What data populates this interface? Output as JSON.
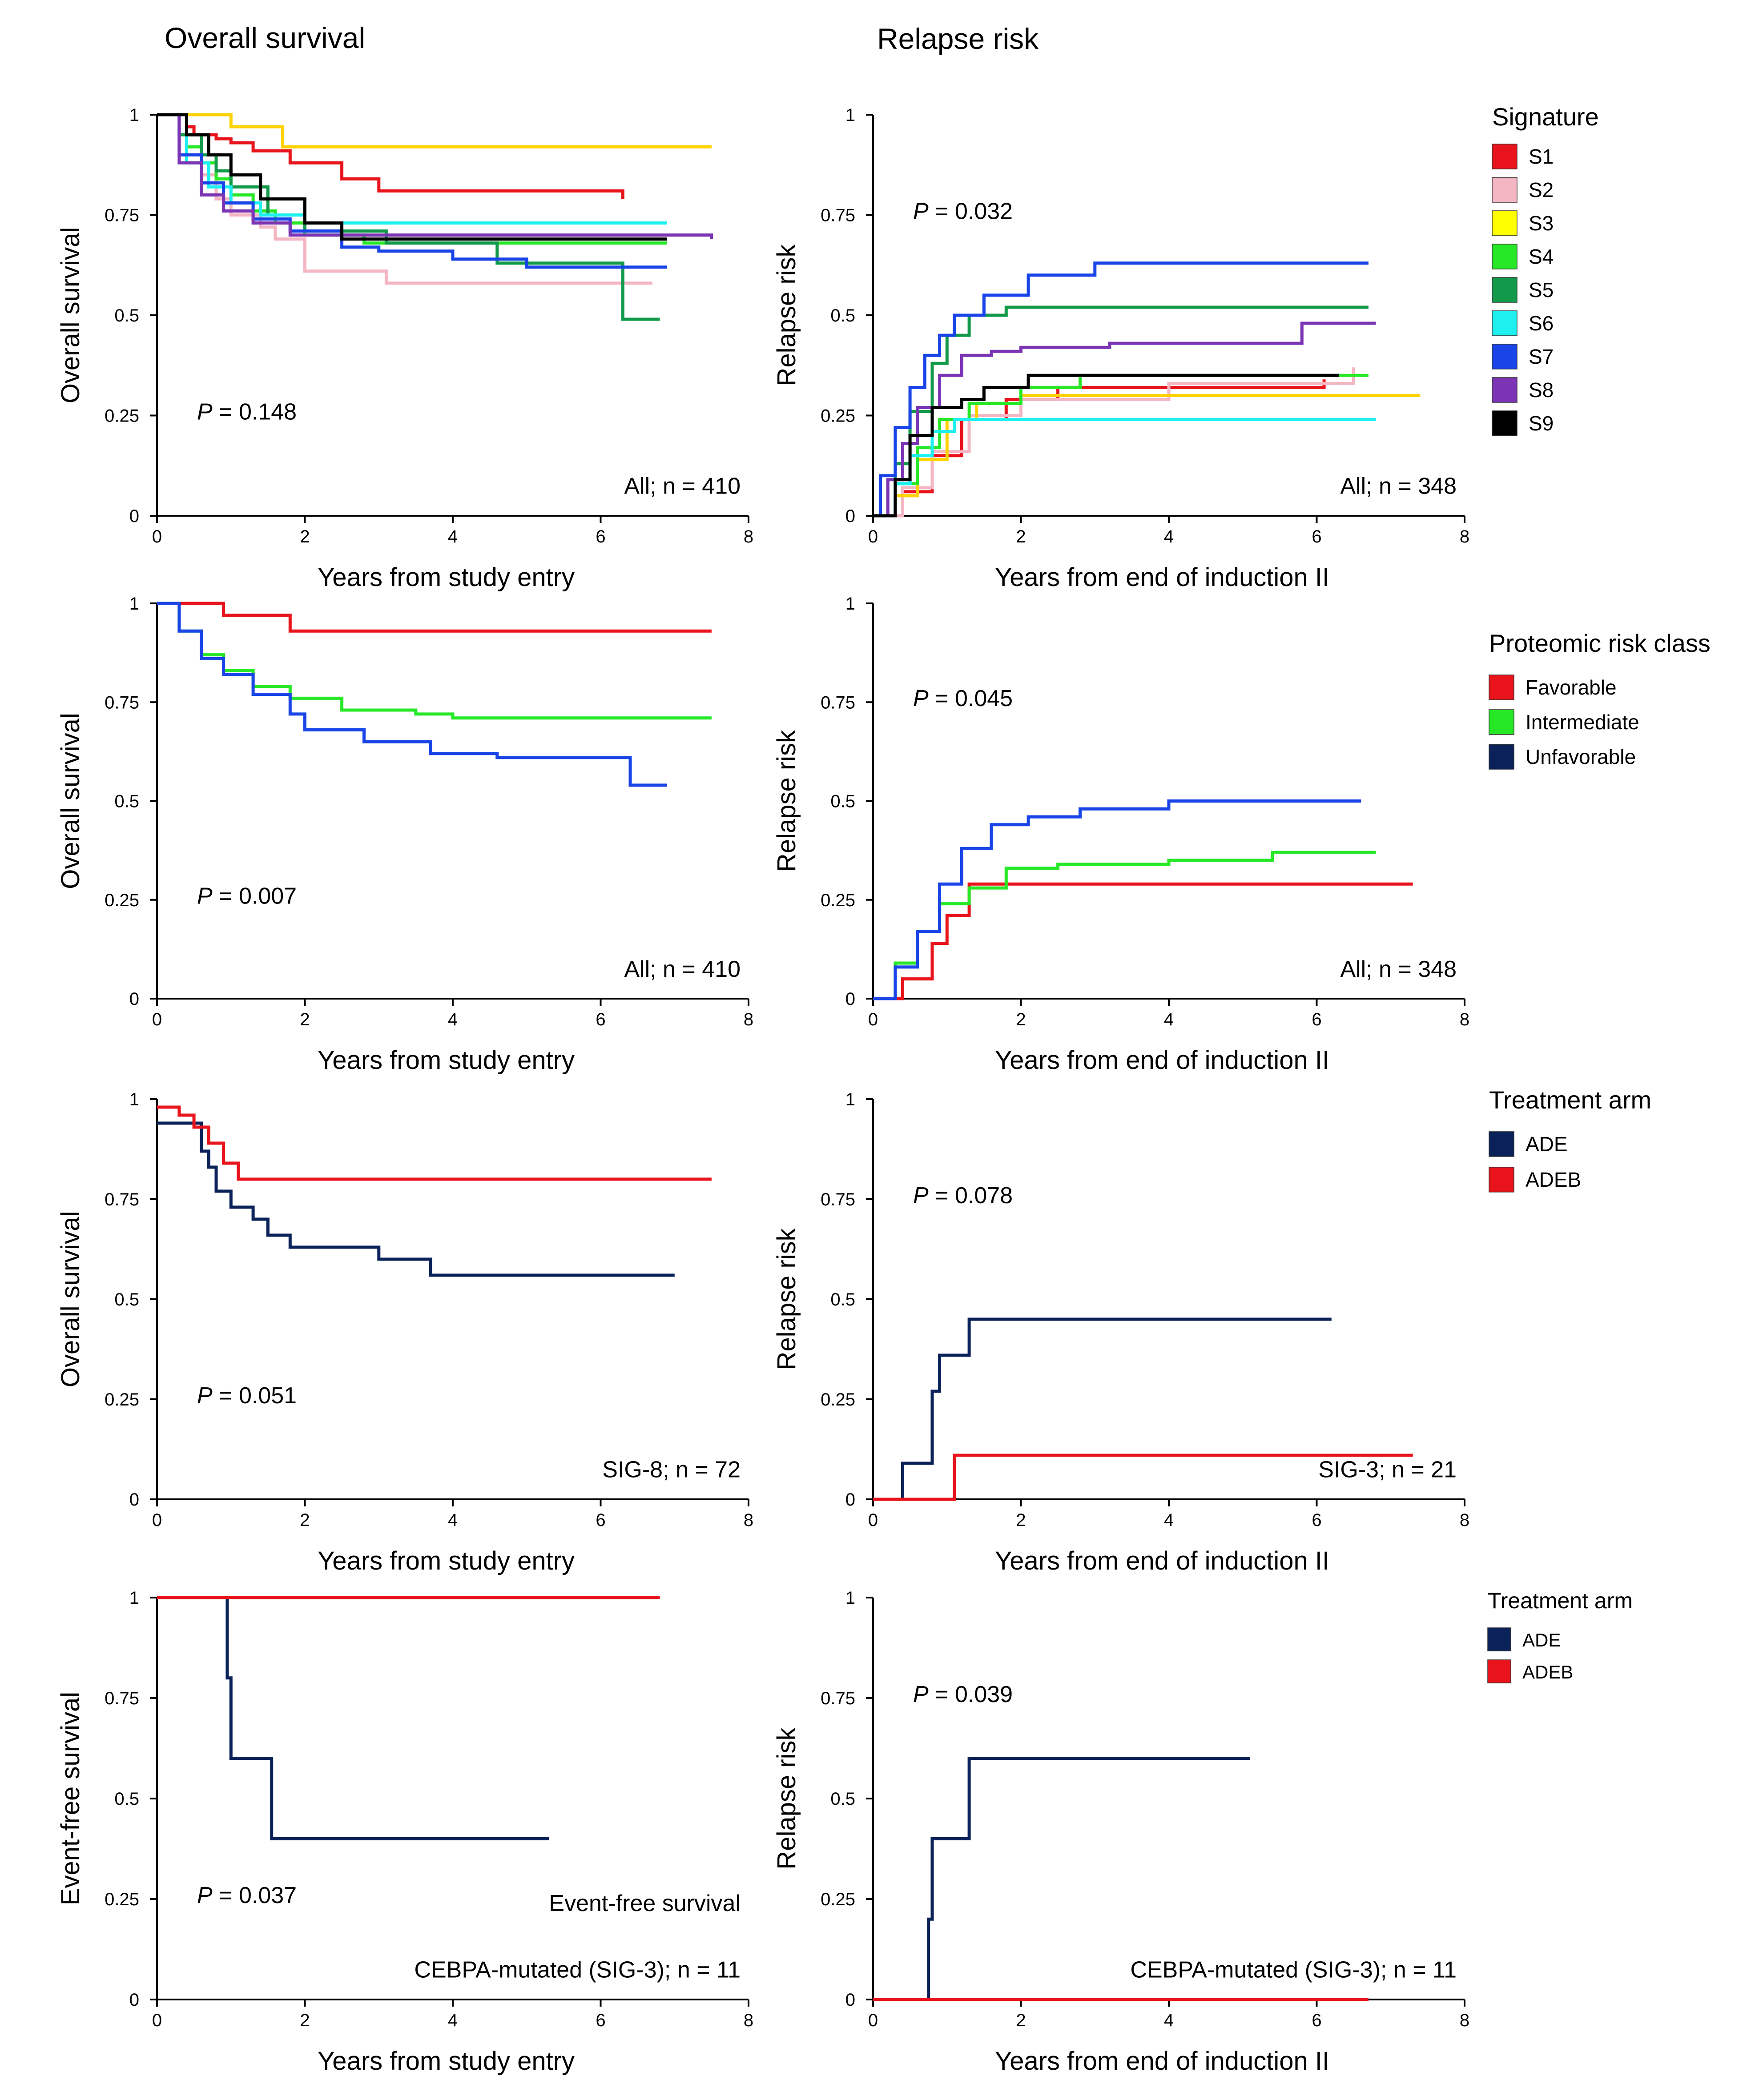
{
  "columns": {
    "left_title": "Overall survival",
    "right_title": "Relapse risk"
  },
  "legends": [
    {
      "title": "Signature",
      "entries": [
        {
          "label": "S1",
          "color": "#e8131b"
        },
        {
          "label": "S2",
          "color": "#f4b6c2"
        },
        {
          "label": "S3",
          "color": "#ffff00"
        },
        {
          "label": "S4",
          "color": "#27e827"
        },
        {
          "label": "S5",
          "color": "#129a4a"
        },
        {
          "label": "S6",
          "color": "#1ef0f0"
        },
        {
          "label": "S7",
          "color": "#1844e8"
        },
        {
          "label": "S8",
          "color": "#7b35b4"
        },
        {
          "label": "S9",
          "color": "#000000"
        }
      ]
    },
    {
      "title": "Proteomic risk class",
      "entries": [
        {
          "label": "Favorable",
          "color": "#e8131b"
        },
        {
          "label": "Intermediate",
          "color": "#27e827"
        },
        {
          "label": "Unfavorable",
          "color": "#0a2259"
        }
      ]
    },
    {
      "title": "Treatment arm",
      "entries": [
        {
          "label": "ADE",
          "color": "#0a2259"
        },
        {
          "label": "ADEB",
          "color": "#e8131b"
        }
      ]
    },
    {
      "title": "Treatment arm",
      "entries": [
        {
          "label": "ADE",
          "color": "#0a2259"
        },
        {
          "label": "ADEB",
          "color": "#e8131b"
        }
      ]
    }
  ],
  "chart_data": [
    {
      "id": "os_signature",
      "type": "line",
      "ylabel": "Overall survival",
      "xlabel": "Years from study entry",
      "xlim": [
        0,
        8
      ],
      "ylim": [
        0,
        1
      ],
      "xticks": [
        "0",
        "2",
        "4",
        "6",
        "8"
      ],
      "yticks": [
        "0",
        "0.25",
        "0.5",
        "0.75",
        "1"
      ],
      "pvalue": "= 0.148",
      "note": "All; n = 410",
      "series": [
        {
          "name": "S1",
          "color": "#e8131b",
          "x": [
            0,
            0.4,
            0.5,
            0.8,
            1.0,
            1.3,
            1.8,
            2.5,
            3.0,
            6.3
          ],
          "y": [
            1,
            0.97,
            0.95,
            0.94,
            0.93,
            0.91,
            0.88,
            0.84,
            0.81,
            0.79
          ]
        },
        {
          "name": "S2",
          "color": "#f4b6c2",
          "x": [
            0,
            0.4,
            0.6,
            0.8,
            1.0,
            1.4,
            1.6,
            2.0,
            3.1,
            6.7
          ],
          "y": [
            1,
            0.9,
            0.85,
            0.79,
            0.75,
            0.72,
            0.69,
            0.61,
            0.58,
            0.58
          ]
        },
        {
          "name": "S3",
          "color": "#ffd200",
          "x": [
            0,
            1.0,
            1.7,
            7.5
          ],
          "y": [
            1,
            0.97,
            0.92,
            0.92
          ]
        },
        {
          "name": "S4",
          "color": "#27e827",
          "x": [
            0,
            0.4,
            0.6,
            0.8,
            1.0,
            1.3,
            1.6,
            2.0,
            2.8,
            6.9
          ],
          "y": [
            1,
            0.92,
            0.88,
            0.84,
            0.8,
            0.76,
            0.73,
            0.7,
            0.68,
            0.68
          ]
        },
        {
          "name": "S5",
          "color": "#129a4a",
          "x": [
            0,
            0.3,
            0.6,
            0.8,
            1.0,
            1.5,
            2.0,
            3.1,
            4.6,
            6.3,
            6.8
          ],
          "y": [
            1,
            0.95,
            0.9,
            0.86,
            0.82,
            0.75,
            0.71,
            0.68,
            0.63,
            0.49,
            0.49
          ]
        },
        {
          "name": "S6",
          "color": "#1ef0f0",
          "x": [
            0,
            0.4,
            0.7,
            1.0,
            1.4,
            2.0,
            6.9
          ],
          "y": [
            1,
            0.88,
            0.82,
            0.78,
            0.75,
            0.73,
            0.73
          ]
        },
        {
          "name": "S7",
          "color": "#1844e8",
          "x": [
            0,
            0.3,
            0.6,
            0.9,
            1.3,
            1.8,
            2.5,
            3.0,
            4.0,
            5.0,
            6.9
          ],
          "y": [
            1,
            0.9,
            0.83,
            0.78,
            0.74,
            0.71,
            0.67,
            0.66,
            0.64,
            0.62,
            0.62
          ]
        },
        {
          "name": "S8",
          "color": "#7b35b4",
          "x": [
            0,
            0.3,
            0.6,
            0.9,
            1.3,
            1.8,
            7.5
          ],
          "y": [
            1,
            0.88,
            0.8,
            0.76,
            0.73,
            0.7,
            0.69
          ]
        },
        {
          "name": "S9",
          "color": "#000000",
          "x": [
            0,
            0.4,
            0.7,
            1.0,
            1.4,
            2.0,
            2.5,
            6.9
          ],
          "y": [
            1,
            0.95,
            0.9,
            0.85,
            0.79,
            0.73,
            0.69,
            0.69
          ]
        }
      ]
    },
    {
      "id": "rr_signature",
      "type": "line",
      "ylabel": "Relapse risk",
      "xlabel": "Years from end of induction II",
      "xlim": [
        0,
        8
      ],
      "ylim": [
        0,
        1
      ],
      "xticks": [
        "0",
        "2",
        "4",
        "6",
        "8"
      ],
      "yticks": [
        "0",
        "0.25",
        "0.5",
        "0.75",
        "1"
      ],
      "pvalue": "= 0.032",
      "note": "All; n = 348",
      "series": [
        {
          "name": "S1",
          "color": "#e8131b",
          "x": [
            0,
            0.4,
            0.8,
            1.2,
            1.8,
            2.5,
            6.1
          ],
          "y": [
            0,
            0.06,
            0.15,
            0.24,
            0.29,
            0.32,
            0.34
          ]
        },
        {
          "name": "S2",
          "color": "#f4b6c2",
          "x": [
            0,
            0.4,
            0.8,
            1.3,
            2.0,
            4.0,
            6.5
          ],
          "y": [
            0,
            0.07,
            0.16,
            0.25,
            0.29,
            0.33,
            0.37
          ]
        },
        {
          "name": "S3",
          "color": "#ffd200",
          "x": [
            0,
            0.3,
            0.6,
            1.0,
            1.4,
            2.0,
            7.4
          ],
          "y": [
            0,
            0.05,
            0.14,
            0.24,
            0.28,
            0.3,
            0.3
          ]
        },
        {
          "name": "S4",
          "color": "#27e827",
          "x": [
            0,
            0.3,
            0.6,
            0.9,
            1.3,
            2.0,
            2.8,
            6.7
          ],
          "y": [
            0,
            0.08,
            0.17,
            0.24,
            0.28,
            0.32,
            0.35,
            0.35
          ]
        },
        {
          "name": "S5",
          "color": "#129a4a",
          "x": [
            0,
            0.3,
            0.5,
            0.8,
            1.0,
            1.3,
            1.8,
            6.7
          ],
          "y": [
            0,
            0.13,
            0.26,
            0.38,
            0.45,
            0.5,
            0.52,
            0.52
          ]
        },
        {
          "name": "S6",
          "color": "#1ef0f0",
          "x": [
            0,
            0.3,
            0.5,
            0.8,
            1.1,
            6.8
          ],
          "y": [
            0,
            0.08,
            0.15,
            0.21,
            0.24,
            0.24
          ]
        },
        {
          "name": "S7",
          "color": "#1844e8",
          "x": [
            0,
            0.1,
            0.3,
            0.5,
            0.7,
            0.9,
            1.1,
            1.5,
            2.1,
            3.0,
            6.7
          ],
          "y": [
            0,
            0.1,
            0.22,
            0.32,
            0.4,
            0.45,
            0.5,
            0.55,
            0.6,
            0.63,
            0.63
          ]
        },
        {
          "name": "S8",
          "color": "#7b35b4",
          "x": [
            0,
            0.2,
            0.4,
            0.6,
            0.9,
            1.2,
            1.6,
            2.0,
            3.2,
            5.8,
            6.8
          ],
          "y": [
            0,
            0.09,
            0.18,
            0.27,
            0.35,
            0.4,
            0.41,
            0.42,
            0.43,
            0.48,
            0.48
          ]
        },
        {
          "name": "S9",
          "color": "#000000",
          "x": [
            0,
            0.3,
            0.5,
            0.8,
            1.2,
            1.5,
            2.1,
            6.3
          ],
          "y": [
            0,
            0.09,
            0.2,
            0.27,
            0.29,
            0.32,
            0.35,
            0.35
          ]
        }
      ]
    },
    {
      "id": "os_proteomic",
      "type": "line",
      "ylabel": "Overall survival",
      "xlabel": "Years from study entry",
      "xlim": [
        0,
        8
      ],
      "ylim": [
        0,
        1
      ],
      "xticks": [
        "0",
        "2",
        "4",
        "6",
        "8"
      ],
      "yticks": [
        "0",
        "0.25",
        "0.5",
        "0.75",
        "1"
      ],
      "pvalue": "= 0.007",
      "note": "All; n = 410",
      "series": [
        {
          "name": "Favorable",
          "color": "#e8131b",
          "x": [
            0,
            0.9,
            1.8,
            7.5
          ],
          "y": [
            1,
            0.97,
            0.93,
            0.93
          ]
        },
        {
          "name": "Intermediate",
          "color": "#27e827",
          "x": [
            0,
            0.3,
            0.6,
            0.9,
            1.3,
            1.8,
            2.5,
            3.5,
            4.0,
            7.5
          ],
          "y": [
            1,
            0.93,
            0.87,
            0.83,
            0.79,
            0.76,
            0.73,
            0.72,
            0.71,
            0.71
          ]
        },
        {
          "name": "Unfavorable",
          "color": "#1844e8",
          "x": [
            0,
            0.3,
            0.6,
            0.9,
            1.3,
            1.8,
            2.0,
            2.8,
            3.7,
            4.6,
            6.4,
            6.9
          ],
          "y": [
            1,
            0.93,
            0.86,
            0.82,
            0.77,
            0.72,
            0.68,
            0.65,
            0.62,
            0.61,
            0.54,
            0.54
          ]
        }
      ]
    },
    {
      "id": "rr_proteomic",
      "type": "line",
      "ylabel": "Relapse risk",
      "xlabel": "Years from end of induction II",
      "xlim": [
        0,
        8
      ],
      "ylim": [
        0,
        1
      ],
      "xticks": [
        "0",
        "2",
        "4",
        "6",
        "8"
      ],
      "yticks": [
        "0",
        "0.25",
        "0.5",
        "0.75",
        "1"
      ],
      "pvalue": "= 0.045",
      "note": "All; n = 348",
      "series": [
        {
          "name": "Favorable",
          "color": "#e8131b",
          "x": [
            0,
            0.4,
            0.8,
            1.0,
            1.3,
            7.3
          ],
          "y": [
            0,
            0.05,
            0.14,
            0.21,
            0.29,
            0.29
          ]
        },
        {
          "name": "Intermediate",
          "color": "#27e827",
          "x": [
            0,
            0.3,
            0.6,
            0.9,
            1.3,
            1.8,
            2.5,
            4.0,
            5.4,
            6.8
          ],
          "y": [
            0,
            0.09,
            0.17,
            0.24,
            0.28,
            0.33,
            0.34,
            0.35,
            0.37,
            0.37
          ]
        },
        {
          "name": "Unfavorable",
          "color": "#1844e8",
          "x": [
            0,
            0.3,
            0.6,
            0.9,
            1.2,
            1.6,
            2.1,
            2.8,
            4.0,
            6.6
          ],
          "y": [
            0,
            0.08,
            0.17,
            0.29,
            0.38,
            0.44,
            0.46,
            0.48,
            0.5,
            0.5
          ]
        }
      ]
    },
    {
      "id": "os_treatment_sig8",
      "type": "line",
      "ylabel": "Overall survival",
      "xlabel": "Years from study entry",
      "xlim": [
        0,
        8
      ],
      "ylim": [
        0,
        1
      ],
      "xticks": [
        "0",
        "2",
        "4",
        "6",
        "8"
      ],
      "yticks": [
        "0",
        "0.25",
        "0.5",
        "0.75",
        "1"
      ],
      "pvalue": "= 0.051",
      "note": "SIG-8; n = 72",
      "series": [
        {
          "name": "ADE",
          "color": "#0a2259",
          "x": [
            0,
            0.3,
            0.6,
            0.7,
            0.8,
            1.0,
            1.3,
            1.5,
            1.8,
            3.0,
            3.7,
            7.0
          ],
          "y": [
            0.94,
            0.94,
            0.87,
            0.83,
            0.77,
            0.73,
            0.7,
            0.66,
            0.63,
            0.6,
            0.56,
            0.56
          ]
        },
        {
          "name": "ADEB",
          "color": "#e8131b",
          "x": [
            0,
            0.3,
            0.5,
            0.7,
            0.9,
            1.1,
            7.5
          ],
          "y": [
            0.98,
            0.96,
            0.93,
            0.89,
            0.84,
            0.8,
            0.8
          ]
        }
      ]
    },
    {
      "id": "rr_treatment_sig3",
      "type": "line",
      "ylabel": "Relapse risk",
      "xlabel": "Years from end of induction II",
      "xlim": [
        0,
        8
      ],
      "ylim": [
        0,
        1
      ],
      "xticks": [
        "0",
        "2",
        "4",
        "6",
        "8"
      ],
      "yticks": [
        "0",
        "0.25",
        "0.5",
        "0.75",
        "1"
      ],
      "pvalue": "= 0.078",
      "note": "SIG-3; n = 21",
      "series": [
        {
          "name": "ADE",
          "color": "#0a2259",
          "x": [
            0,
            0.4,
            0.8,
            0.9,
            1.3,
            6.2
          ],
          "y": [
            0,
            0.09,
            0.27,
            0.36,
            0.45,
            0.45
          ]
        },
        {
          "name": "ADEB",
          "color": "#e8131b",
          "x": [
            0,
            1.1,
            7.3
          ],
          "y": [
            0,
            0.11,
            0.11
          ]
        }
      ]
    },
    {
      "id": "efs_cebpa",
      "type": "line",
      "ylabel": "Event-free survival",
      "xlabel": "Years from study entry",
      "xlim": [
        0,
        8
      ],
      "ylim": [
        0,
        1
      ],
      "xticks": [
        "0",
        "2",
        "4",
        "6",
        "8"
      ],
      "yticks": [
        "0",
        "0.25",
        "0.5",
        "0.75",
        "1"
      ],
      "pvalue": "= 0.037",
      "note_top": "Event-free survival",
      "note": "CEBPA-mutated (SIG-3); n = 11",
      "series": [
        {
          "name": "ADE",
          "color": "#0a2259",
          "x": [
            0,
            0.95,
            1.0,
            1.55,
            5.3
          ],
          "y": [
            1,
            0.8,
            0.6,
            0.4,
            0.4
          ]
        },
        {
          "name": "ADEB",
          "color": "#e8131b",
          "x": [
            0,
            6.8
          ],
          "y": [
            1,
            1
          ]
        }
      ]
    },
    {
      "id": "rr_cebpa",
      "type": "line",
      "ylabel": "Relapse risk",
      "xlabel": "Years from end of induction II",
      "xlim": [
        0,
        8
      ],
      "ylim": [
        0,
        1
      ],
      "xticks": [
        "0",
        "2",
        "4",
        "6",
        "8"
      ],
      "yticks": [
        "0",
        "0.25",
        "0.5",
        "0.75",
        "1"
      ],
      "pvalue": "= 0.039",
      "note": "CEBPA-mutated (SIG-3); n = 11",
      "series": [
        {
          "name": "ADE",
          "color": "#0a2259",
          "x": [
            0,
            0.75,
            0.8,
            1.3,
            5.1
          ],
          "y": [
            0,
            0.2,
            0.4,
            0.6,
            0.6
          ]
        },
        {
          "name": "ADEB",
          "color": "#e8131b",
          "x": [
            0,
            6.7
          ],
          "y": [
            0,
            0
          ]
        }
      ]
    }
  ]
}
